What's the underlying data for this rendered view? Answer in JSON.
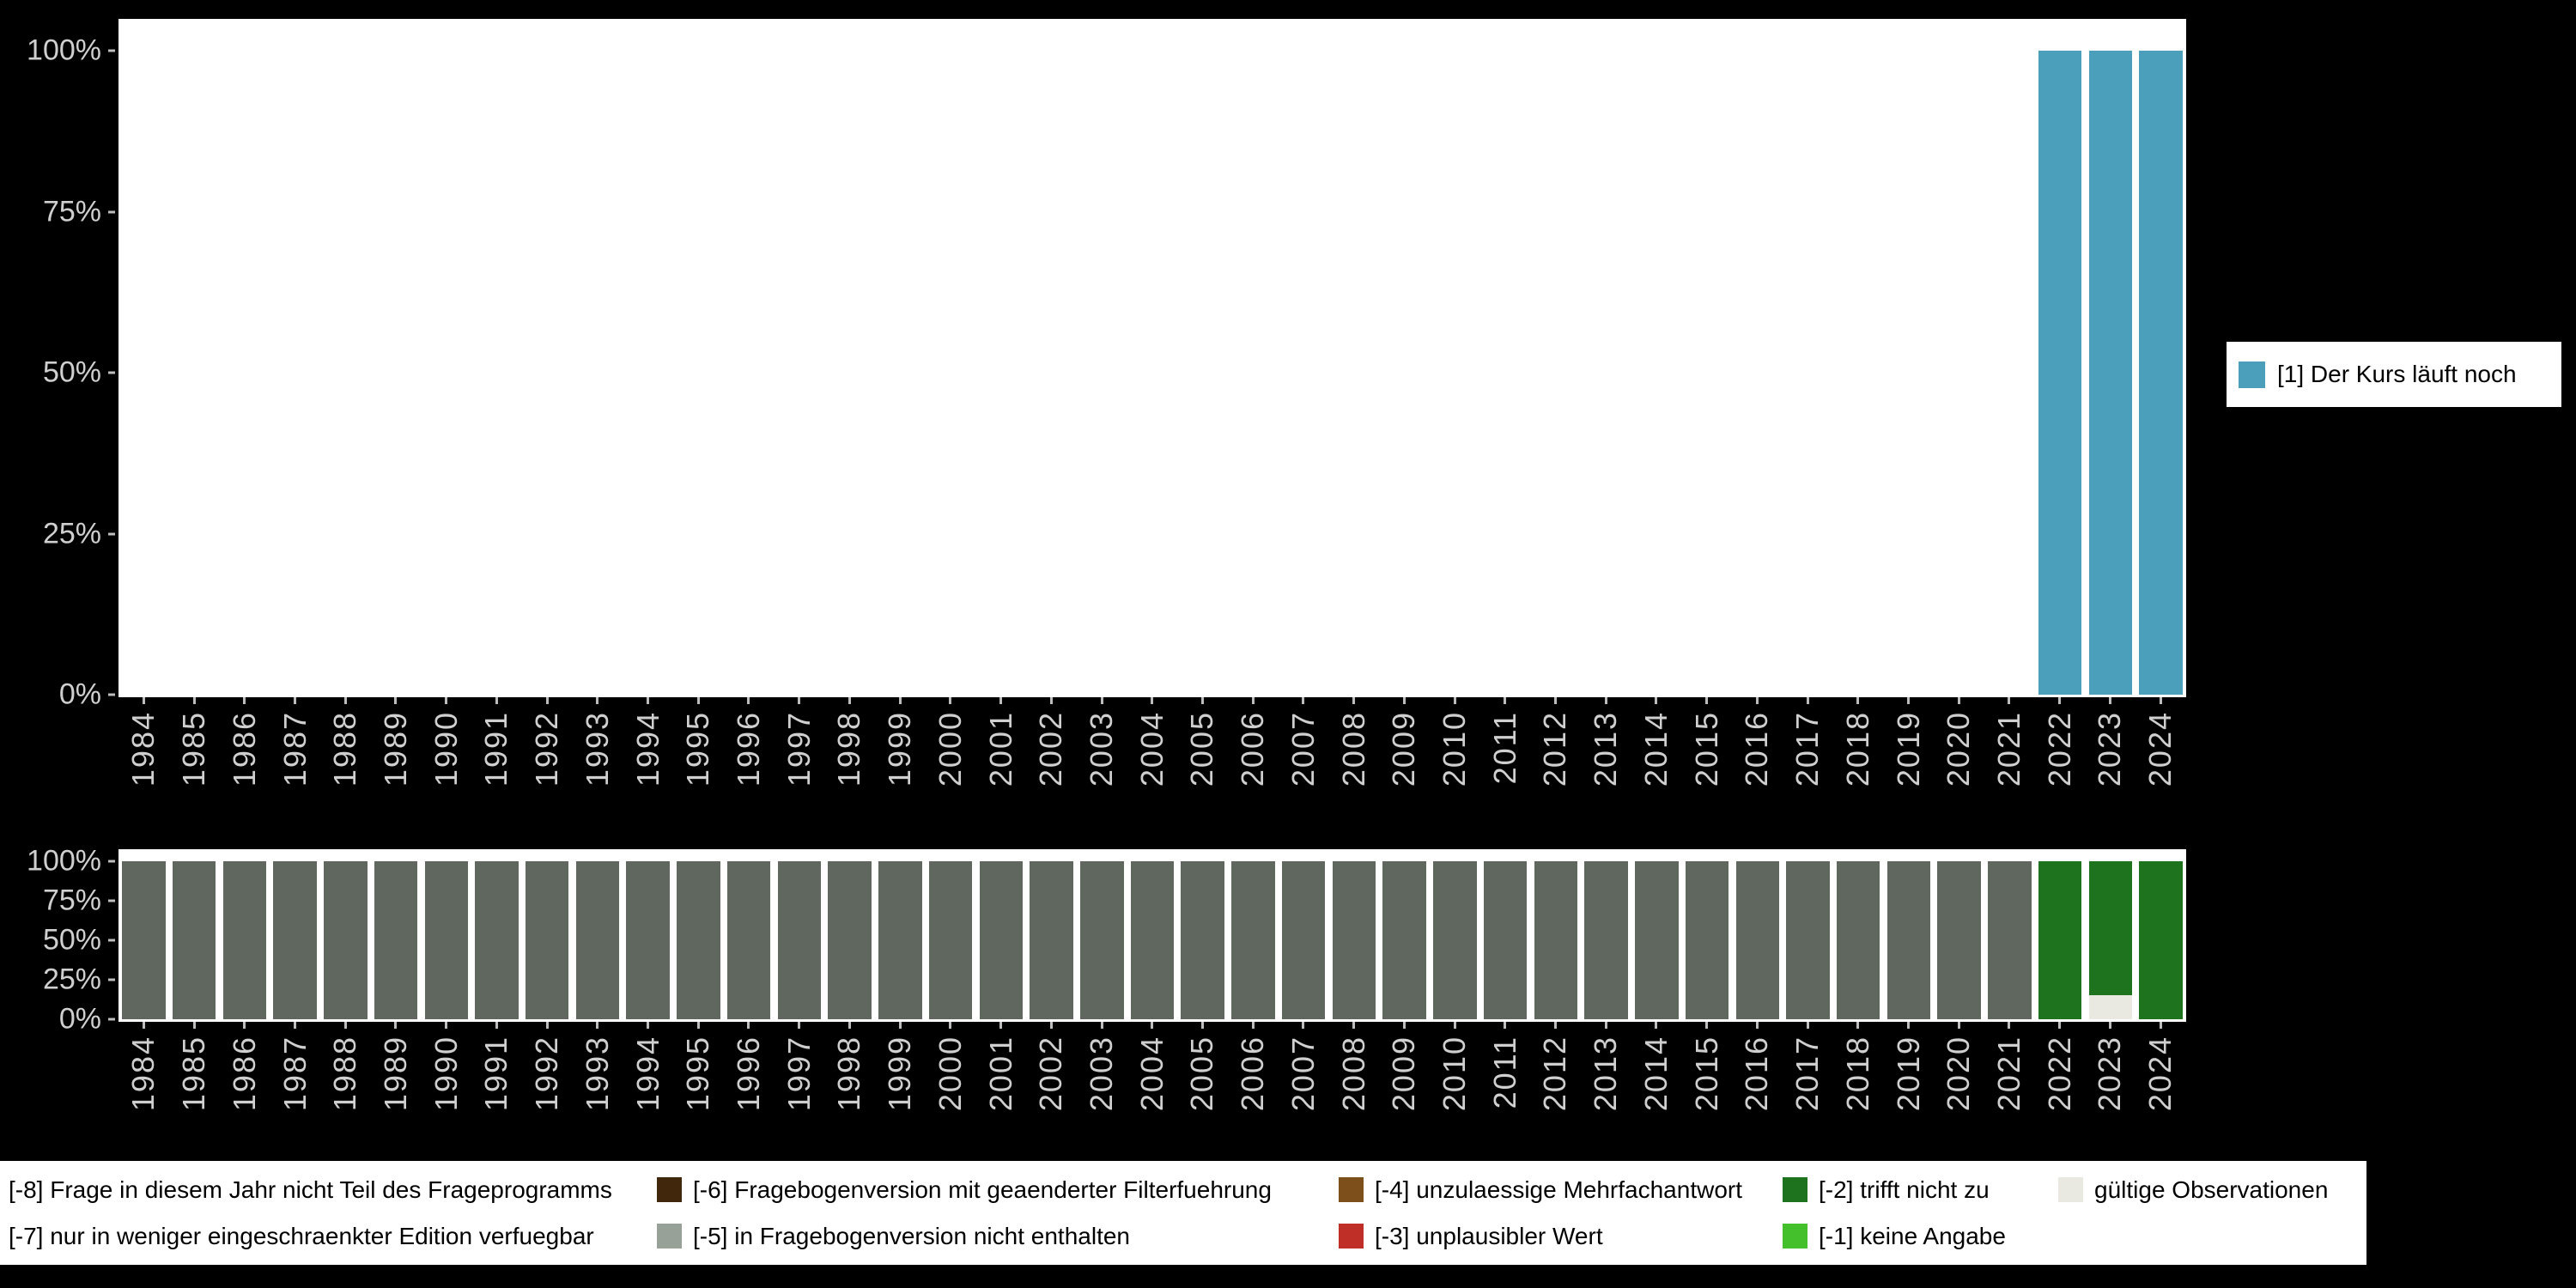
{
  "colors": {
    "background": "#000000",
    "plot_background": "#ffffff",
    "axis_text": "#cfcfcf",
    "legend_background": "#ffffff",
    "legend_text": "#000000"
  },
  "legend_right": {
    "label": "[1] Der Kurs läuft noch",
    "swatch_color": "#4b9fba"
  },
  "legend_bottom": {
    "rows": [
      [
        {
          "label": "[-8] Frage in diesem Jahr nicht Teil des Frageprogramms",
          "swatch_color": null
        },
        {
          "label": "[-6] Fragebogenversion mit geaenderter Filterfuehrung",
          "swatch_color": "#41280c"
        },
        {
          "label": "[-4] unzulaessige Mehrfachantwort",
          "swatch_color": "#7d4f1a"
        },
        {
          "label": "[-2] trifft nicht zu",
          "swatch_color": "#1e741e"
        },
        {
          "label": "gültige Observationen",
          "swatch_color": "#e9e9e2"
        }
      ],
      [
        {
          "label": "[-7] nur in weniger eingeschraenkter Edition verfuegbar",
          "swatch_color": null
        },
        {
          "label": "[-5] in Fragebogenversion nicht enthalten",
          "swatch_color": "#97a198"
        },
        {
          "label": "[-3] unplausibler Wert",
          "swatch_color": "#bf2e27"
        },
        {
          "label": "[-1] keine Angabe",
          "swatch_color": "#45c02d"
        }
      ]
    ]
  },
  "chart_data": [
    {
      "id": "frequencies",
      "type": "bar",
      "stacked": true,
      "title": "",
      "xlabel": "",
      "ylabel": "",
      "ylim": [
        0,
        100
      ],
      "grid": false,
      "legend_position": "right",
      "yticks": [
        {
          "label": "100%",
          "value": 100
        },
        {
          "label": "75%",
          "value": 75
        },
        {
          "label": "50%",
          "value": 50
        },
        {
          "label": "25%",
          "value": 25
        },
        {
          "label": "0%",
          "value": 0
        }
      ],
      "categories": [
        "1984",
        "1985",
        "1986",
        "1987",
        "1988",
        "1989",
        "1990",
        "1991",
        "1992",
        "1993",
        "1994",
        "1995",
        "1996",
        "1997",
        "1998",
        "1999",
        "2000",
        "2001",
        "2002",
        "2003",
        "2004",
        "2005",
        "2006",
        "2007",
        "2008",
        "2009",
        "2010",
        "2011",
        "2012",
        "2013",
        "2014",
        "2015",
        "2016",
        "2017",
        "2018",
        "2019",
        "2020",
        "2021",
        "2022",
        "2023",
        "2024"
      ],
      "series": [
        {
          "name": "[1] Der Kurs läuft noch",
          "color": "#4b9fba",
          "values": [
            0,
            0,
            0,
            0,
            0,
            0,
            0,
            0,
            0,
            0,
            0,
            0,
            0,
            0,
            0,
            0,
            0,
            0,
            0,
            0,
            0,
            0,
            0,
            0,
            0,
            0,
            0,
            0,
            0,
            0,
            0,
            0,
            0,
            0,
            0,
            0,
            0,
            0,
            100,
            100,
            100
          ]
        }
      ]
    },
    {
      "id": "missings",
      "type": "bar",
      "stacked": true,
      "title": "",
      "xlabel": "",
      "ylabel": "",
      "ylim": [
        0,
        100
      ],
      "grid": false,
      "legend_position": "bottom",
      "yticks": [
        {
          "label": "100%",
          "value": 100
        },
        {
          "label": "75%",
          "value": 75
        },
        {
          "label": "50%",
          "value": 50
        },
        {
          "label": "25%",
          "value": 25
        },
        {
          "label": "0%",
          "value": 0
        }
      ],
      "categories": [
        "1984",
        "1985",
        "1986",
        "1987",
        "1988",
        "1989",
        "1990",
        "1991",
        "1992",
        "1993",
        "1994",
        "1995",
        "1996",
        "1997",
        "1998",
        "1999",
        "2000",
        "2001",
        "2002",
        "2003",
        "2004",
        "2005",
        "2006",
        "2007",
        "2008",
        "2009",
        "2010",
        "2011",
        "2012",
        "2013",
        "2014",
        "2015",
        "2016",
        "2017",
        "2018",
        "2019",
        "2020",
        "2021",
        "2022",
        "2023",
        "2024"
      ],
      "series": [
        {
          "name": "[-8] Frage in diesem Jahr nicht Teil des Frageprogramms",
          "color": "#5f675f",
          "values": [
            100,
            100,
            100,
            100,
            100,
            100,
            100,
            100,
            100,
            100,
            100,
            100,
            100,
            100,
            100,
            100,
            100,
            100,
            100,
            100,
            100,
            100,
            100,
            100,
            100,
            100,
            100,
            100,
            100,
            100,
            100,
            100,
            100,
            100,
            100,
            100,
            100,
            100,
            0,
            0,
            0
          ]
        },
        {
          "name": "gültige Observationen",
          "color": "#e9e9e2",
          "values": [
            0,
            0,
            0,
            0,
            0,
            0,
            0,
            0,
            0,
            0,
            0,
            0,
            0,
            0,
            0,
            0,
            0,
            0,
            0,
            0,
            0,
            0,
            0,
            0,
            0,
            0,
            0,
            0,
            0,
            0,
            0,
            0,
            0,
            0,
            0,
            0,
            0,
            0,
            0,
            15,
            0
          ]
        },
        {
          "name": "[-2] trifft nicht zu",
          "color": "#1e741e",
          "values": [
            0,
            0,
            0,
            0,
            0,
            0,
            0,
            0,
            0,
            0,
            0,
            0,
            0,
            0,
            0,
            0,
            0,
            0,
            0,
            0,
            0,
            0,
            0,
            0,
            0,
            0,
            0,
            0,
            0,
            0,
            0,
            0,
            0,
            0,
            0,
            0,
            0,
            0,
            100,
            85,
            100
          ]
        }
      ]
    }
  ]
}
